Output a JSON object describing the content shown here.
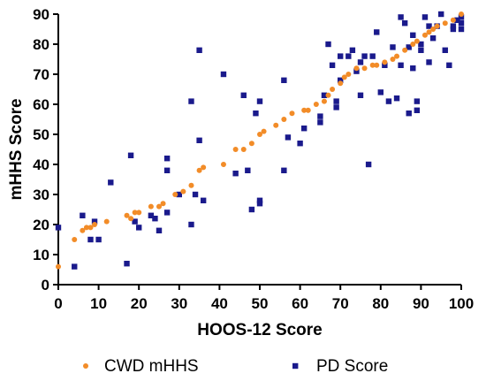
{
  "chart_data": {
    "type": "scatter",
    "xlabel": "HOOS-12 Score",
    "ylabel": "mHHS Score",
    "xlim": [
      0,
      100
    ],
    "ylim": [
      0,
      90
    ],
    "xticks": [
      0,
      10,
      20,
      30,
      40,
      50,
      60,
      70,
      80,
      90,
      100
    ],
    "yticks": [
      0,
      10,
      20,
      30,
      40,
      50,
      60,
      70,
      80,
      90
    ],
    "grid": false,
    "legend_position": "bottom",
    "series": [
      {
        "name": "CWD mHHS",
        "color": "#f28c28",
        "marker": "circle",
        "points": [
          [
            0,
            6
          ],
          [
            4,
            15
          ],
          [
            6,
            18
          ],
          [
            7,
            19
          ],
          [
            8,
            19
          ],
          [
            9,
            20
          ],
          [
            12,
            21
          ],
          [
            17,
            23
          ],
          [
            18,
            22
          ],
          [
            19,
            24
          ],
          [
            20,
            24
          ],
          [
            23,
            26
          ],
          [
            25,
            26
          ],
          [
            26,
            27
          ],
          [
            29,
            30
          ],
          [
            31,
            31
          ],
          [
            33,
            33
          ],
          [
            35,
            38
          ],
          [
            36,
            39
          ],
          [
            41,
            40
          ],
          [
            44,
            45
          ],
          [
            46,
            45
          ],
          [
            48,
            47
          ],
          [
            50,
            50
          ],
          [
            51,
            51
          ],
          [
            54,
            53
          ],
          [
            56,
            55
          ],
          [
            58,
            57
          ],
          [
            61,
            58
          ],
          [
            62,
            58
          ],
          [
            64,
            60
          ],
          [
            66,
            61
          ],
          [
            67,
            63
          ],
          [
            68,
            65
          ],
          [
            70,
            67
          ],
          [
            71,
            69
          ],
          [
            72,
            70
          ],
          [
            74,
            72
          ],
          [
            76,
            72
          ],
          [
            78,
            73
          ],
          [
            79,
            73
          ],
          [
            81,
            74
          ],
          [
            83,
            75
          ],
          [
            84,
            76
          ],
          [
            86,
            78
          ],
          [
            88,
            80
          ],
          [
            89,
            81
          ],
          [
            91,
            83
          ],
          [
            92,
            84
          ],
          [
            93,
            85
          ],
          [
            94,
            86
          ],
          [
            96,
            87
          ],
          [
            98,
            88
          ],
          [
            100,
            90
          ]
        ]
      },
      {
        "name": "PD Score",
        "color": "#1a1a8c",
        "marker": "square",
        "points": [
          [
            0,
            19
          ],
          [
            4,
            6
          ],
          [
            6,
            23
          ],
          [
            8,
            15
          ],
          [
            9,
            21
          ],
          [
            10,
            15
          ],
          [
            13,
            34
          ],
          [
            17,
            7
          ],
          [
            18,
            43
          ],
          [
            19,
            21
          ],
          [
            20,
            19
          ],
          [
            23,
            23
          ],
          [
            24,
            22
          ],
          [
            25,
            18
          ],
          [
            27,
            42
          ],
          [
            27,
            24
          ],
          [
            27,
            38
          ],
          [
            30,
            30
          ],
          [
            33,
            20
          ],
          [
            33,
            61
          ],
          [
            34,
            30
          ],
          [
            35,
            78
          ],
          [
            35,
            48
          ],
          [
            36,
            28
          ],
          [
            41,
            70
          ],
          [
            44,
            37
          ],
          [
            46,
            63
          ],
          [
            47,
            38
          ],
          [
            48,
            25
          ],
          [
            49,
            57
          ],
          [
            50,
            61
          ],
          [
            50,
            28
          ],
          [
            50,
            27
          ],
          [
            56,
            68
          ],
          [
            56,
            38
          ],
          [
            57,
            49
          ],
          [
            60,
            47
          ],
          [
            61,
            52
          ],
          [
            65,
            56
          ],
          [
            65,
            54
          ],
          [
            66,
            63
          ],
          [
            67,
            80
          ],
          [
            68,
            73
          ],
          [
            69,
            61
          ],
          [
            69,
            59
          ],
          [
            70,
            76
          ],
          [
            70,
            68
          ],
          [
            72,
            76
          ],
          [
            73,
            78
          ],
          [
            74,
            71
          ],
          [
            75,
            63
          ],
          [
            75,
            74
          ],
          [
            76,
            76
          ],
          [
            77,
            40
          ],
          [
            78,
            76
          ],
          [
            79,
            84
          ],
          [
            80,
            64
          ],
          [
            81,
            73
          ],
          [
            82,
            61
          ],
          [
            83,
            79
          ],
          [
            84,
            62
          ],
          [
            85,
            89
          ],
          [
            85,
            73
          ],
          [
            86,
            87
          ],
          [
            87,
            79
          ],
          [
            87,
            57
          ],
          [
            88,
            83
          ],
          [
            88,
            72
          ],
          [
            89,
            61
          ],
          [
            89,
            58
          ],
          [
            90,
            80
          ],
          [
            90,
            78
          ],
          [
            91,
            89
          ],
          [
            92,
            74
          ],
          [
            92,
            86
          ],
          [
            93,
            82
          ],
          [
            94,
            86
          ],
          [
            95,
            90
          ],
          [
            96,
            78
          ],
          [
            97,
            73
          ],
          [
            98,
            86
          ],
          [
            98,
            85
          ],
          [
            99,
            88
          ],
          [
            100,
            87
          ],
          [
            100,
            89
          ],
          [
            100,
            85
          ]
        ]
      }
    ]
  }
}
